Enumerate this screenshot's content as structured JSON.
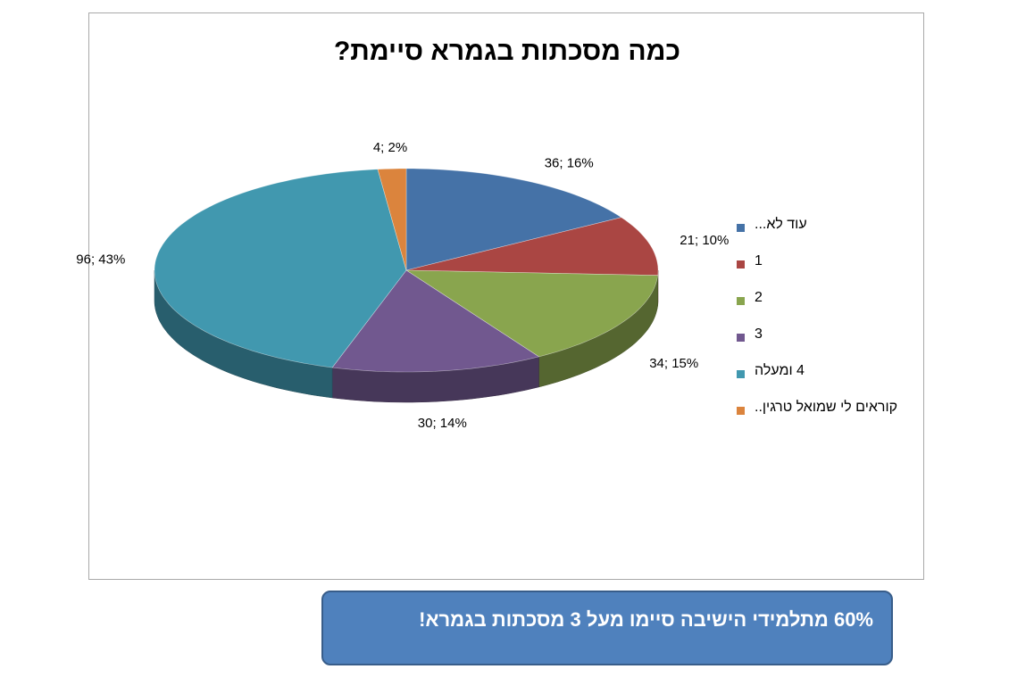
{
  "chart_data": {
    "type": "pie",
    "title": "כמה מסכתות בגמרא סיימת?",
    "slices": [
      {
        "label": "עוד לא...",
        "value": 36,
        "percent": 16,
        "data_label": "36; 16%",
        "color": "#4572a7"
      },
      {
        "label": "1",
        "value": 21,
        "percent": 10,
        "data_label": "21; 10%",
        "color": "#aa4643"
      },
      {
        "label": "2",
        "value": 34,
        "percent": 15,
        "data_label": "34; 15%",
        "color": "#89a54e"
      },
      {
        "label": "3",
        "value": 30,
        "percent": 14,
        "data_label": "30; 14%",
        "color": "#71588f"
      },
      {
        "label": "4 ומעלה",
        "value": 96,
        "percent": 43,
        "data_label": "96; 43%",
        "color": "#4198af"
      },
      {
        "label": "קוראים לי שמואל טרגין..",
        "value": 4,
        "percent": 2,
        "data_label": "4; 2%",
        "color": "#db843d"
      }
    ],
    "legend_position": "right"
  },
  "callout": {
    "text": "60% מתלמידי הישיבה סיימו מעל 3 מסכתות בגמרא!",
    "color": "#4f81bd"
  }
}
